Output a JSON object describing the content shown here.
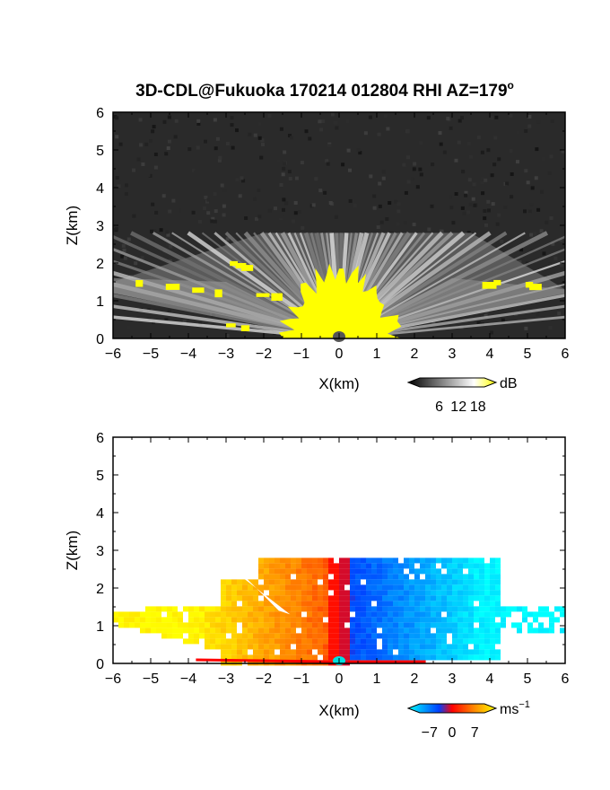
{
  "figure": {
    "title": "3D-CDL@Fukuoka 170214 012804 RHI AZ=179",
    "title_superscript": "o"
  },
  "chart_data": [
    {
      "type": "heatmap",
      "name": "reflectivity-panel",
      "xlabel": "X(km)",
      "ylabel": "Z(km)",
      "xlim": [
        -6,
        6
      ],
      "ylim": [
        0,
        6
      ],
      "x_ticks": [
        -6,
        -5,
        -4,
        -3,
        -2,
        -1,
        0,
        1,
        2,
        3,
        4,
        5,
        6
      ],
      "y_ticks": [
        0,
        1,
        2,
        3,
        4,
        5,
        6
      ],
      "colorbar": {
        "unit": "dB",
        "ticks": [
          6,
          12,
          18
        ],
        "range": [
          0,
          20
        ],
        "colors": [
          "#000000",
          "#ffffff",
          "#ffff00"
        ]
      },
      "features": {
        "beam_top_km": 2.8,
        "beam_top_x_km": [
          -2.0,
          3.5
        ],
        "strong_core_top_km": 1.6,
        "low_level_layer_km": 1.5,
        "noise_background": "dark gray"
      }
    },
    {
      "type": "heatmap",
      "name": "velocity-panel",
      "xlabel": "X(km)",
      "ylabel": "Z(km)",
      "xlim": [
        -6,
        6
      ],
      "ylim": [
        0,
        6
      ],
      "x_ticks": [
        -6,
        -5,
        -4,
        -3,
        -2,
        -1,
        0,
        1,
        2,
        3,
        4,
        5,
        6
      ],
      "y_ticks": [
        0,
        1,
        2,
        3,
        4,
        5,
        6
      ],
      "colorbar": {
        "unit": "ms",
        "unit_superscript": "−1",
        "ticks": [
          -7,
          0,
          7
        ],
        "tick_labels": [
          "−7",
          "0",
          "7"
        ],
        "range": [
          -10,
          10
        ],
        "colors": [
          "#00ffff",
          "#0040ff",
          "#ff0000",
          "#ff8800",
          "#ffff00"
        ]
      },
      "features": {
        "sign_convention": "positive (warm colors) at x<0, negative (cool colors) at x>0",
        "data_top_km": 2.8,
        "data_extent_x_km": [
          -6.0,
          6.0
        ]
      }
    }
  ]
}
